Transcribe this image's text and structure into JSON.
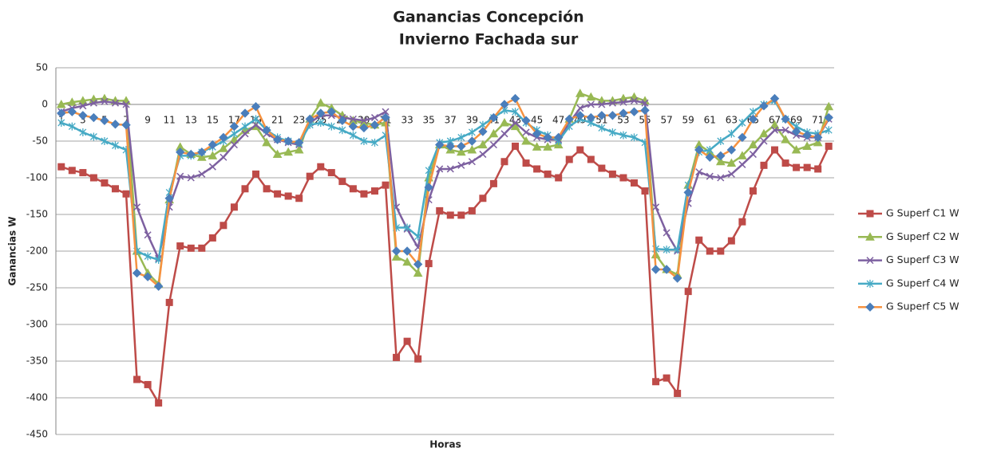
{
  "chart_data": {
    "type": "line",
    "title": "Ganancias Concepción",
    "subtitle": "Invierno Fachada sur",
    "x_label": "Horas",
    "y_label": "Ganancias W",
    "categories": [
      "1",
      null,
      "3",
      null,
      "5",
      null,
      "7",
      null,
      "9",
      null,
      "11",
      null,
      "13",
      null,
      "15",
      null,
      "17",
      null,
      "19",
      null,
      "21",
      null,
      "23",
      null,
      "25",
      null,
      "27",
      null,
      "29",
      null,
      "31",
      null,
      "33",
      null,
      "35",
      null,
      "37",
      null,
      "39",
      null,
      "41",
      null,
      "43",
      null,
      "45",
      null,
      "47",
      null,
      "49",
      null,
      "51",
      null,
      "53",
      null,
      "55",
      null,
      "57",
      null,
      "59",
      null,
      "61",
      null,
      "63",
      null,
      "65",
      null,
      "67",
      null,
      "69",
      null,
      "71",
      null
    ],
    "ylim": [
      -450,
      50
    ],
    "yticks": [
      -450,
      -400,
      -350,
      -300,
      -250,
      -200,
      -150,
      -100,
      -50,
      0,
      50
    ],
    "grid": true,
    "legend": "right",
    "series": [
      {
        "name": "G Superf C1 W",
        "color": "#be4b48",
        "marker": "square",
        "values": [
          -85,
          -90,
          -93,
          -100,
          -107,
          -115,
          -122,
          -375,
          -382,
          -407,
          -270,
          -193,
          -196,
          -196,
          -182,
          -165,
          -140,
          -115,
          -95,
          -115,
          -122,
          -125,
          -128,
          -98,
          -85,
          -93,
          -105,
          -115,
          -122,
          -118,
          -110,
          -345,
          -323,
          -347,
          -217,
          -145,
          -151,
          -151,
          -145,
          -128,
          -108,
          -78,
          -57,
          -80,
          -88,
          -95,
          -100,
          -75,
          -62,
          -75,
          -87,
          -95,
          -100,
          -107,
          -118,
          -378,
          -373,
          -394,
          -255,
          -185,
          -200,
          -200,
          -186,
          -160,
          -118,
          -83,
          -62,
          -80,
          -86,
          -86,
          -88,
          -57
        ]
      },
      {
        "name": "G Superf C2 W",
        "color": "#98b954",
        "marker": "triangle",
        "values": [
          0,
          3,
          5,
          7,
          8,
          5,
          5,
          -200,
          -230,
          -245,
          -130,
          -58,
          -68,
          -72,
          -70,
          -60,
          -48,
          -35,
          -30,
          -52,
          -68,
          -65,
          -62,
          -20,
          2,
          -5,
          -15,
          -22,
          -25,
          -28,
          -25,
          -208,
          -215,
          -230,
          -100,
          -55,
          -62,
          -65,
          -62,
          -55,
          -40,
          -25,
          -30,
          -50,
          -58,
          -58,
          -55,
          -20,
          15,
          10,
          5,
          5,
          8,
          10,
          5,
          -205,
          -225,
          -232,
          -110,
          -55,
          -65,
          -78,
          -80,
          -70,
          -55,
          -40,
          -28,
          -48,
          -62,
          -57,
          -52,
          -3
        ]
      },
      {
        "name": "G Superf C3 W",
        "color": "#7d60a0",
        "marker": "x",
        "values": [
          -10,
          -5,
          -2,
          2,
          4,
          2,
          0,
          -140,
          -178,
          -210,
          -140,
          -98,
          -100,
          -95,
          -85,
          -72,
          -55,
          -40,
          -28,
          -40,
          -48,
          -52,
          -55,
          -25,
          -15,
          -15,
          -18,
          -20,
          -22,
          -18,
          -10,
          -140,
          -170,
          -195,
          -130,
          -88,
          -88,
          -83,
          -78,
          -68,
          -55,
          -40,
          -25,
          -38,
          -45,
          -48,
          -48,
          -25,
          -5,
          0,
          0,
          2,
          3,
          5,
          2,
          -140,
          -175,
          -200,
          -135,
          -92,
          -98,
          -100,
          -95,
          -82,
          -68,
          -50,
          -35,
          -35,
          -42,
          -45,
          -45,
          -20
        ]
      },
      {
        "name": "G Superf C4 W",
        "color": "#46aac5",
        "marker": "star",
        "values": [
          -25,
          -30,
          -38,
          -44,
          -50,
          -56,
          -62,
          -200,
          -207,
          -212,
          -120,
          -70,
          -70,
          -65,
          -58,
          -50,
          -40,
          -30,
          -20,
          -35,
          -45,
          -50,
          -53,
          -28,
          -25,
          -30,
          -35,
          -42,
          -50,
          -52,
          -42,
          -168,
          -168,
          -180,
          -90,
          -52,
          -50,
          -45,
          -38,
          -28,
          -18,
          -8,
          -10,
          -25,
          -35,
          -42,
          -50,
          -30,
          -20,
          -25,
          -32,
          -38,
          -42,
          -45,
          -52,
          -197,
          -198,
          -198,
          -110,
          -65,
          -62,
          -50,
          -40,
          -25,
          -10,
          0,
          5,
          -20,
          -30,
          -38,
          -40,
          -35
        ]
      },
      {
        "name": "G Superf C5 W",
        "color": "#f69240",
        "marker": "diamond",
        "marker_color": "#4a7ebb",
        "values": [
          -12,
          -10,
          -15,
          -18,
          -22,
          -27,
          -28,
          -230,
          -235,
          -248,
          -128,
          -65,
          -68,
          -65,
          -55,
          -45,
          -30,
          -12,
          -3,
          -35,
          -48,
          -50,
          -52,
          -20,
          -12,
          -10,
          -22,
          -30,
          -32,
          -28,
          -18,
          -200,
          -200,
          -218,
          -113,
          -55,
          -57,
          -57,
          -50,
          -37,
          -18,
          0,
          8,
          -22,
          -40,
          -45,
          -45,
          -20,
          -15,
          -18,
          -15,
          -15,
          -12,
          -10,
          -8,
          -225,
          -225,
          -237,
          -120,
          -62,
          -72,
          -70,
          -62,
          -45,
          -20,
          -2,
          8,
          -20,
          -37,
          -42,
          -45,
          -18
        ]
      }
    ]
  }
}
